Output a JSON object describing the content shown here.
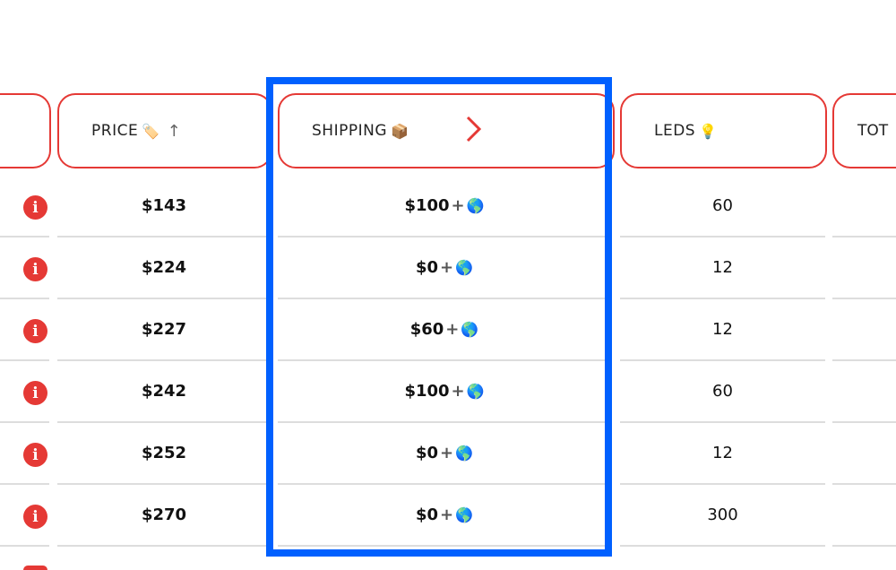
{
  "headers": {
    "price": {
      "label": "PRICE",
      "emoji": "🏷️",
      "sort_icon": "↑"
    },
    "shipping": {
      "label": "SHIPPING",
      "emoji": "📦"
    },
    "leds": {
      "label": "LEDS",
      "emoji": "💡"
    },
    "total": {
      "label": "TOT"
    }
  },
  "rows": [
    {
      "price": "$143",
      "shipping": "$100",
      "leds": "60"
    },
    {
      "price": "$224",
      "shipping": "$0",
      "leds": "12"
    },
    {
      "price": "$227",
      "shipping": "$60",
      "leds": "12"
    },
    {
      "price": "$242",
      "shipping": "$100",
      "leds": "60"
    },
    {
      "price": "$252",
      "shipping": "$0",
      "leds": "12"
    },
    {
      "price": "$270",
      "shipping": "$0",
      "leds": "300"
    }
  ],
  "symbols": {
    "plus": "+",
    "globe": "🌎",
    "info": "i"
  },
  "colors": {
    "accent": "#e53935",
    "highlight": "#0060ff"
  }
}
